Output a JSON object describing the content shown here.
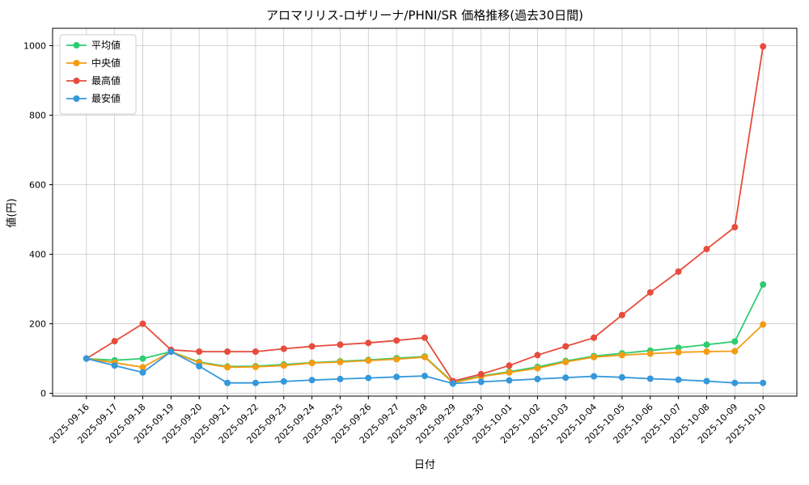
{
  "chart_data": {
    "type": "line",
    "title": "アロマリリス-ロザリーナ/PHNI/SR 価格推移(過去30日間)",
    "xlabel": "日付",
    "ylabel": "値(円)",
    "ylim": [
      -8,
      1050
    ],
    "yticks": [
      0,
      200,
      400,
      600,
      800,
      1000
    ],
    "grid": true,
    "legend_position": "upper left",
    "background": "#ffffff",
    "grid_color": "#c9c9c9",
    "categories": [
      "2025-09-16",
      "2025-09-17",
      "2025-09-18",
      "2025-09-19",
      "2025-09-20",
      "2025-09-21",
      "2025-09-22",
      "2025-09-23",
      "2025-09-24",
      "2025-09-25",
      "2025-09-26",
      "2025-09-27",
      "2025-09-28",
      "2025-09-29",
      "2025-09-30",
      "2025-10-01",
      "2025-10-02",
      "2025-10-03",
      "2025-10-04",
      "2025-10-05",
      "2025-10-06",
      "2025-10-07",
      "2025-10-08",
      "2025-10-09",
      "2025-10-10"
    ],
    "series": [
      {
        "name": "平均値",
        "color": "#2ecc71",
        "values": [
          100,
          95,
          100,
          120,
          90,
          77,
          78,
          83,
          88,
          92,
          96,
          101,
          106,
          32,
          50,
          62,
          76,
          93,
          107,
          115,
          123,
          131,
          140,
          149,
          313
        ]
      },
      {
        "name": "中央値",
        "color": "#f39c12",
        "values": [
          100,
          88,
          75,
          120,
          88,
          75,
          76,
          80,
          87,
          90,
          94,
          98,
          104,
          30,
          48,
          60,
          72,
          90,
          104,
          110,
          114,
          118,
          120,
          121,
          198
        ]
      },
      {
        "name": "最高値",
        "color": "#e74c3c",
        "values": [
          100,
          150,
          200,
          125,
          120,
          120,
          120,
          128,
          135,
          140,
          145,
          152,
          160,
          35,
          55,
          80,
          110,
          135,
          160,
          225,
          290,
          350,
          415,
          478,
          998
        ]
      },
      {
        "name": "最安値",
        "color": "#3498db",
        "values": [
          100,
          80,
          60,
          120,
          78,
          30,
          30,
          34,
          38,
          41,
          44,
          47,
          50,
          28,
          33,
          37,
          41,
          45,
          49,
          46,
          42,
          39,
          35,
          30,
          30
        ]
      }
    ]
  }
}
